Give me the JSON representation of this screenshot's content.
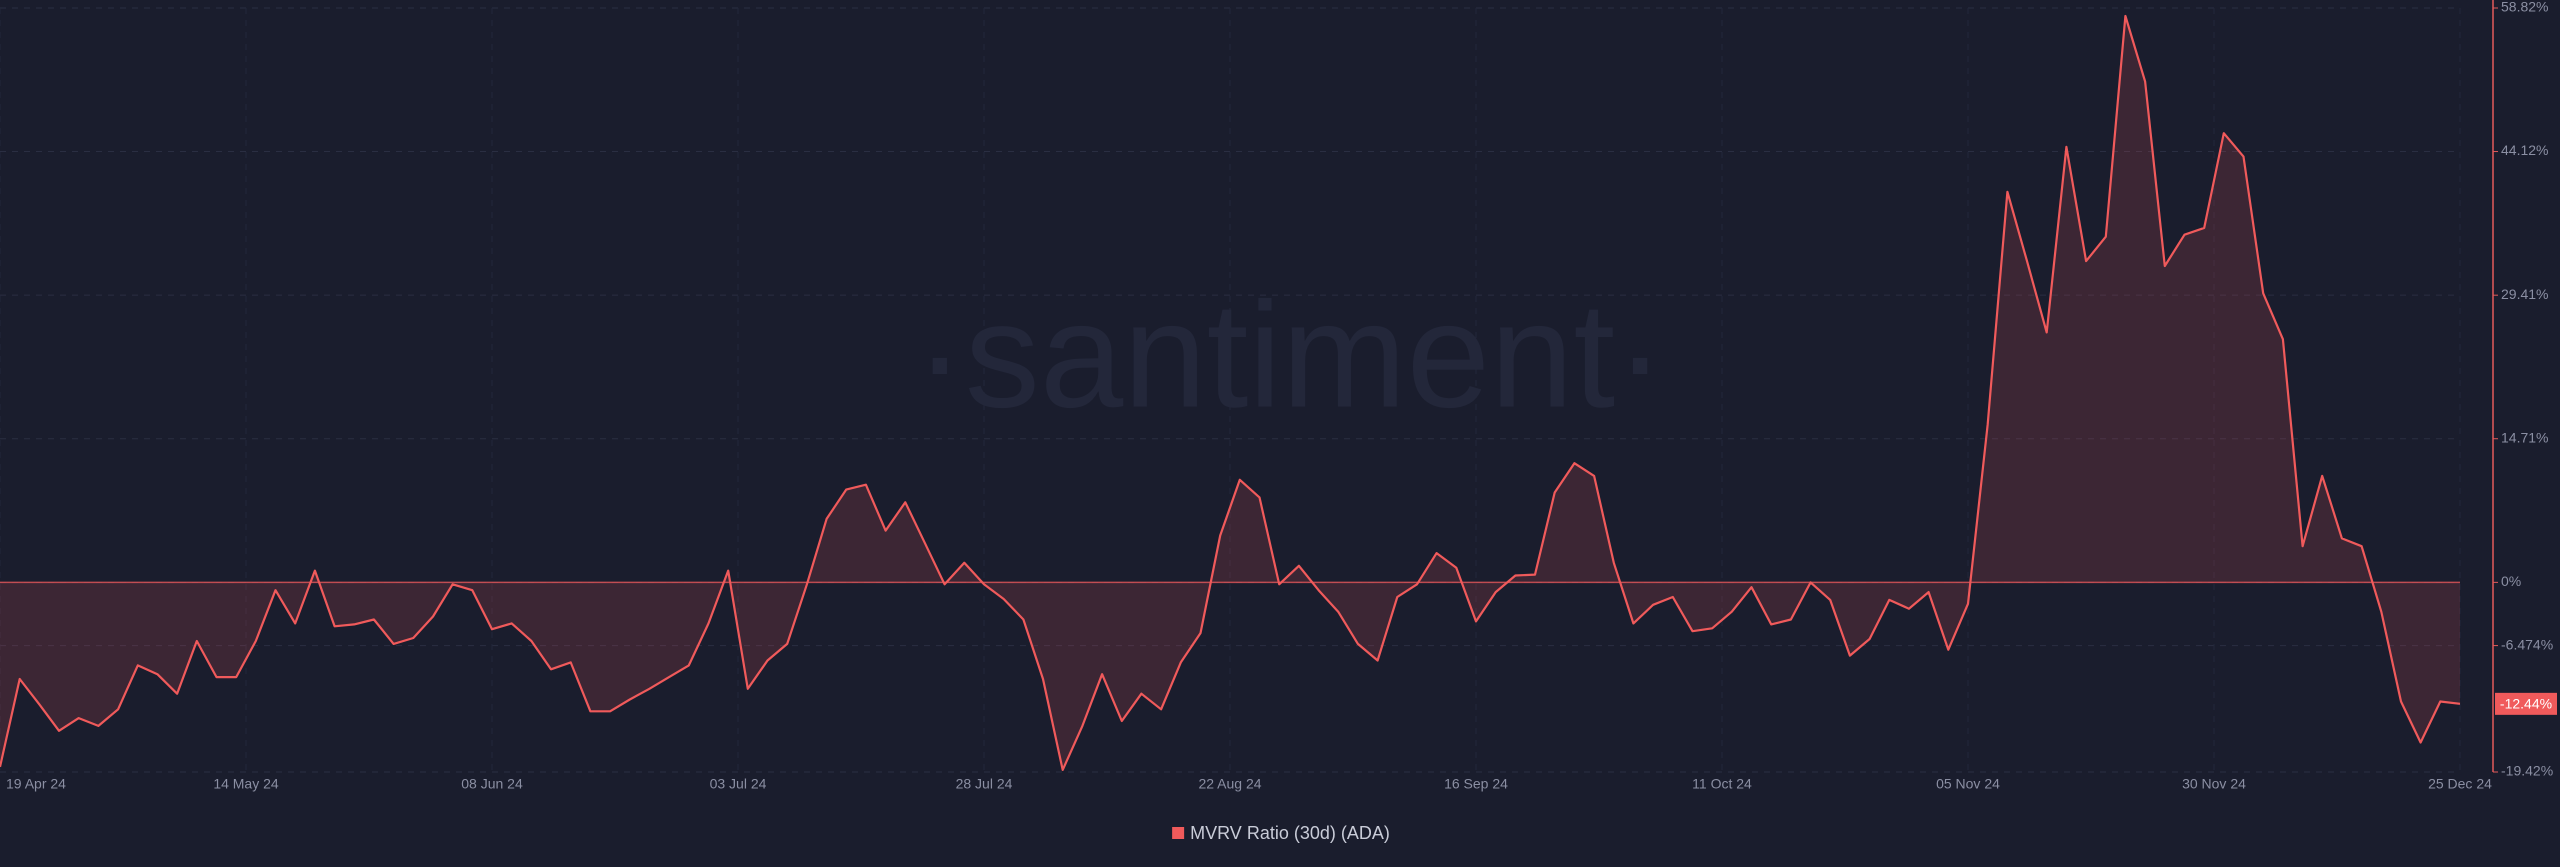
{
  "chart_data": {
    "type": "line",
    "watermark": "·santiment·",
    "x": [
      "2024-04-19",
      "2024-04-21",
      "2024-04-23",
      "2024-04-25",
      "2024-04-27",
      "2024-04-29",
      "2024-05-01",
      "2024-05-03",
      "2024-05-05",
      "2024-05-07",
      "2024-05-09",
      "2024-05-11",
      "2024-05-13",
      "2024-05-15",
      "2024-05-17",
      "2024-05-19",
      "2024-05-21",
      "2024-05-23",
      "2024-05-25",
      "2024-05-27",
      "2024-05-29",
      "2024-05-31",
      "2024-06-02",
      "2024-06-04",
      "2024-06-06",
      "2024-06-08",
      "2024-06-10",
      "2024-06-12",
      "2024-06-14",
      "2024-06-16",
      "2024-06-18",
      "2024-06-20",
      "2024-06-22",
      "2024-06-24",
      "2024-06-26",
      "2024-06-28",
      "2024-06-30",
      "2024-07-02",
      "2024-07-04",
      "2024-07-06",
      "2024-07-08",
      "2024-07-10",
      "2024-07-12",
      "2024-07-14",
      "2024-07-16",
      "2024-07-18",
      "2024-07-20",
      "2024-07-22",
      "2024-07-24",
      "2024-07-26",
      "2024-07-28",
      "2024-07-30",
      "2024-08-01",
      "2024-08-03",
      "2024-08-05",
      "2024-08-07",
      "2024-08-09",
      "2024-08-11",
      "2024-08-13",
      "2024-08-15",
      "2024-08-17",
      "2024-08-19",
      "2024-08-21",
      "2024-08-23",
      "2024-08-25",
      "2024-08-27",
      "2024-08-29",
      "2024-08-31",
      "2024-09-02",
      "2024-09-04",
      "2024-09-06",
      "2024-09-08",
      "2024-09-10",
      "2024-09-12",
      "2024-09-14",
      "2024-09-16",
      "2024-09-18",
      "2024-09-20",
      "2024-09-22",
      "2024-09-24",
      "2024-09-26",
      "2024-09-28",
      "2024-09-30",
      "2024-10-02",
      "2024-10-04",
      "2024-10-06",
      "2024-10-08",
      "2024-10-10",
      "2024-10-12",
      "2024-10-14",
      "2024-10-16",
      "2024-10-18",
      "2024-10-20",
      "2024-10-22",
      "2024-10-24",
      "2024-10-26",
      "2024-10-28",
      "2024-10-30",
      "2024-11-01",
      "2024-11-03",
      "2024-11-05",
      "2024-11-07",
      "2024-11-09",
      "2024-11-11",
      "2024-11-13",
      "2024-11-15",
      "2024-11-17",
      "2024-11-19",
      "2024-11-21",
      "2024-11-23",
      "2024-11-25",
      "2024-11-27",
      "2024-11-29",
      "2024-12-01",
      "2024-12-03",
      "2024-12-05",
      "2024-12-07",
      "2024-12-09",
      "2024-12-11",
      "2024-12-13",
      "2024-12-15",
      "2024-12-17",
      "2024-12-19",
      "2024-12-21",
      "2024-12-23",
      "2024-12-25"
    ],
    "series": [
      {
        "name": "MVRV Ratio (30d) (ADA)",
        "color": "#f05a5b",
        "values": [
          -18.9,
          -9.9,
          -12.5,
          -15.2,
          -13.9,
          -14.7,
          -13.0,
          -8.5,
          -9.4,
          -11.4,
          -6.0,
          -9.7,
          -9.7,
          -6.0,
          -0.8,
          -4.2,
          1.2,
          -4.5,
          -4.3,
          -3.8,
          -6.3,
          -5.7,
          -3.5,
          -0.2,
          -0.8,
          -4.8,
          -4.2,
          -6.0,
          -8.9,
          -8.2,
          -13.2,
          -13.2,
          -12.0,
          -10.9,
          -9.7,
          -8.5,
          -4.2,
          1.2,
          -10.9,
          -8.0,
          -6.3,
          -0.2,
          6.5,
          9.5,
          10.0,
          5.3,
          8.2,
          4.0,
          -0.2,
          2.0,
          -0.2,
          -1.7,
          -3.8,
          -9.9,
          -19.2,
          -14.7,
          -9.4,
          -14.2,
          -11.4,
          -13.0,
          -8.2,
          -5.2,
          4.8,
          10.5,
          8.7,
          -0.2,
          1.7,
          -0.8,
          -3.0,
          -6.3,
          -8.0,
          -1.5,
          -0.2,
          3.0,
          1.5,
          -4.0,
          -1.0,
          0.7,
          0.8,
          9.2,
          12.2,
          10.9,
          2.0,
          -4.2,
          -2.3,
          -1.5,
          -5.0,
          -4.7,
          -3.0,
          -0.5,
          -4.3,
          -3.8,
          0,
          -1.8,
          -7.5,
          -5.8,
          -1.8,
          -2.7,
          -1.0,
          -6.9,
          -2.2,
          16.2,
          40.0,
          32.9,
          25.6,
          44.6,
          32.9,
          35.4,
          58.0,
          51.3,
          32.4,
          35.6,
          36.3,
          46.0,
          43.6,
          29.6,
          24.9,
          3.7,
          10.9,
          4.5,
          3.7,
          -3.0,
          -12.2,
          -16.4,
          -12.2,
          -12.44
        ],
        "value_labels": [
          null,
          null,
          null,
          null,
          null,
          null,
          null,
          null,
          null,
          null,
          null,
          null,
          null,
          null,
          null,
          null,
          null,
          null,
          null,
          null,
          null,
          null,
          null,
          null,
          null,
          null,
          null,
          null,
          null,
          null,
          null,
          null,
          null,
          null,
          null,
          null,
          null,
          null,
          null,
          null,
          null,
          null,
          null,
          null,
          null,
          null,
          null,
          null,
          null,
          null,
          null,
          null,
          null,
          null,
          null,
          null,
          null,
          null,
          null,
          null,
          null,
          null,
          null,
          null,
          null,
          null,
          null,
          null,
          null,
          null,
          null,
          null,
          null,
          null,
          null,
          null,
          null,
          null,
          null,
          null,
          null,
          null,
          null,
          null,
          null,
          null,
          null,
          null,
          null,
          null,
          null,
          null,
          null,
          null,
          null,
          null,
          null,
          null,
          null,
          null,
          null,
          null,
          null,
          null,
          null,
          null,
          null,
          null,
          null,
          null,
          null,
          null,
          null,
          null,
          null,
          null,
          null,
          null,
          null,
          null,
          null,
          null,
          null,
          null,
          null,
          "-12.44%"
        ]
      }
    ],
    "ylim": [
      -19.42,
      58.82
    ],
    "yticks": [
      {
        "value": 58.82,
        "label": "58.82%"
      },
      {
        "value": 44.12,
        "label": "44.12%"
      },
      {
        "value": 29.41,
        "label": "29.41%"
      },
      {
        "value": 14.71,
        "label": "14.71%"
      },
      {
        "value": 0,
        "label": "0%"
      },
      {
        "value": -6.474,
        "label": "-6.474%"
      },
      {
        "value": -19.42,
        "label": "-19.42%"
      }
    ],
    "xticks": [
      {
        "value": "2024-04-19",
        "label": "19 Apr 24"
      },
      {
        "value": "2024-05-14",
        "label": "14 May 24"
      },
      {
        "value": "2024-06-08",
        "label": "08 Jun 24"
      },
      {
        "value": "2024-07-03",
        "label": "03 Jul 24"
      },
      {
        "value": "2024-07-28",
        "label": "28 Jul 24"
      },
      {
        "value": "2024-08-22",
        "label": "22 Aug 24"
      },
      {
        "value": "2024-09-16",
        "label": "16 Sep 24"
      },
      {
        "value": "2024-10-11",
        "label": "11 Oct 24"
      },
      {
        "value": "2024-11-05",
        "label": "05 Nov 24"
      },
      {
        "value": "2024-11-30",
        "label": "30 Nov 24"
      },
      {
        "value": "2024-12-25",
        "label": "25 Dec 24"
      }
    ],
    "grid": true,
    "legend": "bottom"
  }
}
